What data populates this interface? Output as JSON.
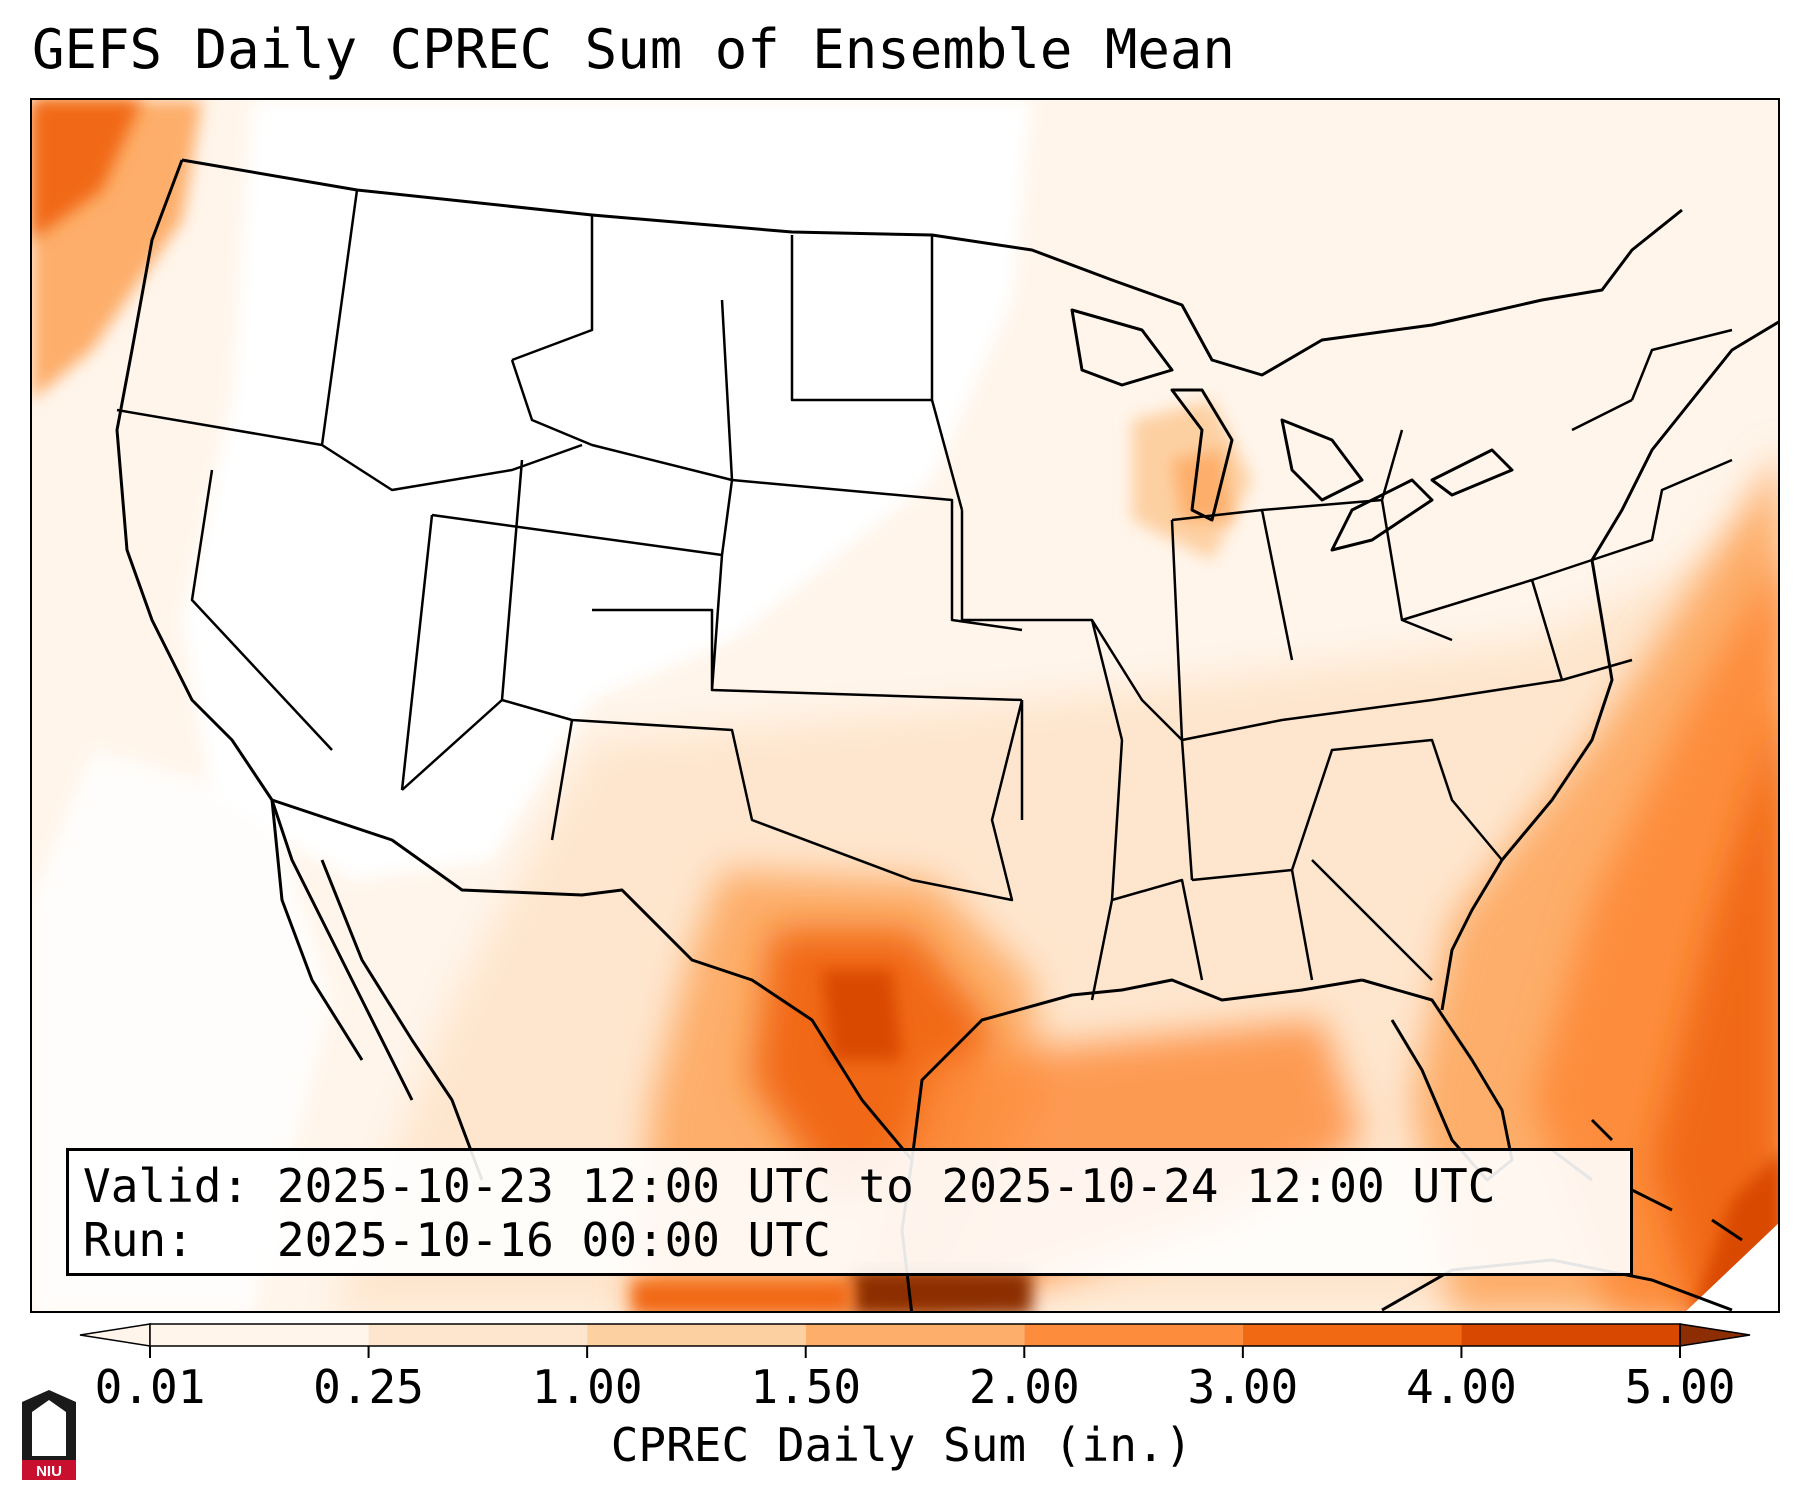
{
  "title": "GEFS Daily CPREC Sum of Ensemble Mean",
  "info": {
    "valid_label": "Valid:",
    "valid_value": "2025-10-23 12:00 UTC to 2025-10-24 12:00 UTC",
    "run_label": "Run:",
    "run_value": "2025-10-16 00:00 UTC"
  },
  "colorbar": {
    "title": "CPREC Daily Sum (in.)",
    "tick_labels": [
      "0.01",
      "0.25",
      "1.00",
      "1.50",
      "2.00",
      "3.00",
      "4.00",
      "5.00"
    ],
    "colors": [
      "#fff5eb",
      "#fee6ce",
      "#fdd0a2",
      "#fdae6b",
      "#fd8d3c",
      "#f16913",
      "#d94801",
      "#8c2d04"
    ],
    "extend": "both"
  },
  "logo": {
    "text": "NIU",
    "color": "#c8102e"
  },
  "precip_colors": [
    "#ffffff",
    "#fff5eb",
    "#fee6ce",
    "#fdd0a2",
    "#fdae6b",
    "#fd8d3c",
    "#f16913",
    "#d94801",
    "#8c2d04"
  ],
  "map_layers": {
    "boundaries": "US states, Canada, Mexico, Cuba, Bahamas",
    "line_color": "#000000"
  }
}
